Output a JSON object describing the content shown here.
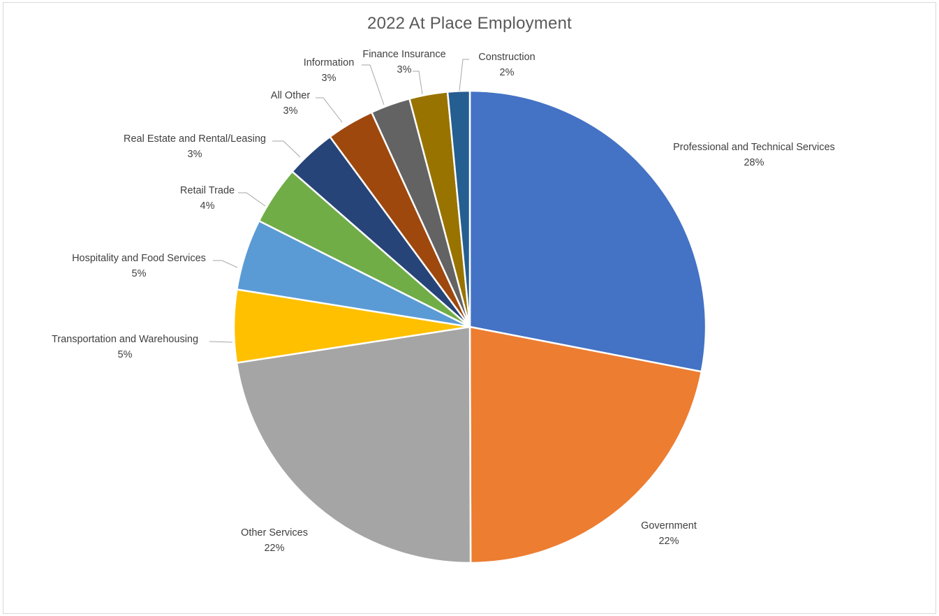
{
  "chart_data": {
    "type": "pie",
    "title": "2022 At Place Employment",
    "slices": [
      {
        "name": "Professional and Technical Services",
        "value": 28,
        "label": "28%",
        "color": "#4472C4"
      },
      {
        "name": "Government",
        "value": 22,
        "label": "22%",
        "color": "#ED7D31"
      },
      {
        "name": "Other Services",
        "value": 22,
        "label": "22%",
        "color": "#A5A5A5"
      },
      {
        "name": "Transportation and Warehousing",
        "value": 5,
        "label": "5%",
        "color": "#FFC000"
      },
      {
        "name": "Hospitality and Food Services",
        "value": 5,
        "label": "5%",
        "color": "#5B9BD5"
      },
      {
        "name": "Retail Trade",
        "value": 4,
        "label": "4%",
        "color": "#70AD47"
      },
      {
        "name": "Real Estate and Rental/Leasing",
        "value": 3,
        "label": "3%",
        "color": "#264478"
      },
      {
        "name": "All Other",
        "value": 3,
        "label": "3%",
        "color": "#9E480E"
      },
      {
        "name": "Information",
        "value": 3,
        "label": "3%",
        "color": "#636363"
      },
      {
        "name": "Finance Insurance",
        "value": 3,
        "label": "3%",
        "color": "#997300"
      },
      {
        "name": "Construction",
        "value": 2,
        "label": "2%",
        "color": "#255E91"
      }
    ]
  }
}
